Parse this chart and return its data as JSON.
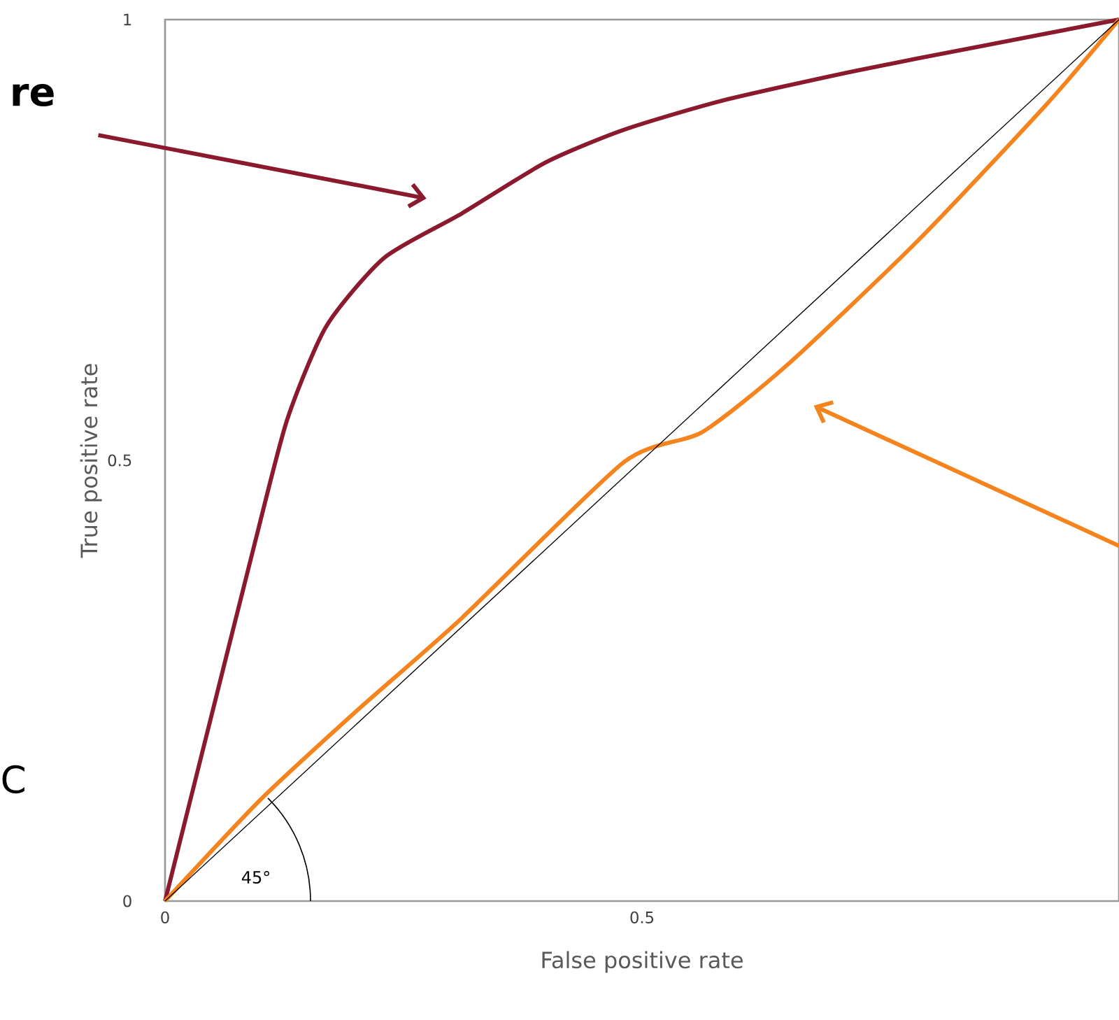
{
  "chart_data": {
    "type": "line",
    "xlabel": "False positive rate",
    "ylabel": "True positive rate",
    "xlim": [
      0,
      1
    ],
    "ylim": [
      0,
      1
    ],
    "xticks": [
      0,
      0.5
    ],
    "yticks": [
      0,
      0.5,
      1
    ],
    "annotations": [
      "re",
      "C",
      "45°"
    ],
    "series": [
      {
        "color": "#8b1a2e",
        "x": [
          0,
          0.037,
          0.095,
          0.128,
          0.169,
          0.23,
          0.311,
          0.399,
          0.481,
          0.584,
          0.72,
          0.856,
          1
        ],
        "values": [
          0,
          0.16,
          0.41,
          0.546,
          0.652,
          0.73,
          0.78,
          0.838,
          0.875,
          0.908,
          0.941,
          0.97,
          1
        ]
      },
      {
        "color": "#f5841f",
        "x": [
          0,
          0.1,
          0.2,
          0.311,
          0.481,
          0.563,
          0.652,
          0.789,
          0.925,
          1
        ],
        "values": [
          0,
          0.115,
          0.215,
          0.321,
          0.498,
          0.532,
          0.608,
          0.749,
          0.905,
          1
        ]
      },
      {
        "color": "#000000",
        "x": [
          0,
          1
        ],
        "values": [
          0,
          1
        ]
      }
    ]
  }
}
